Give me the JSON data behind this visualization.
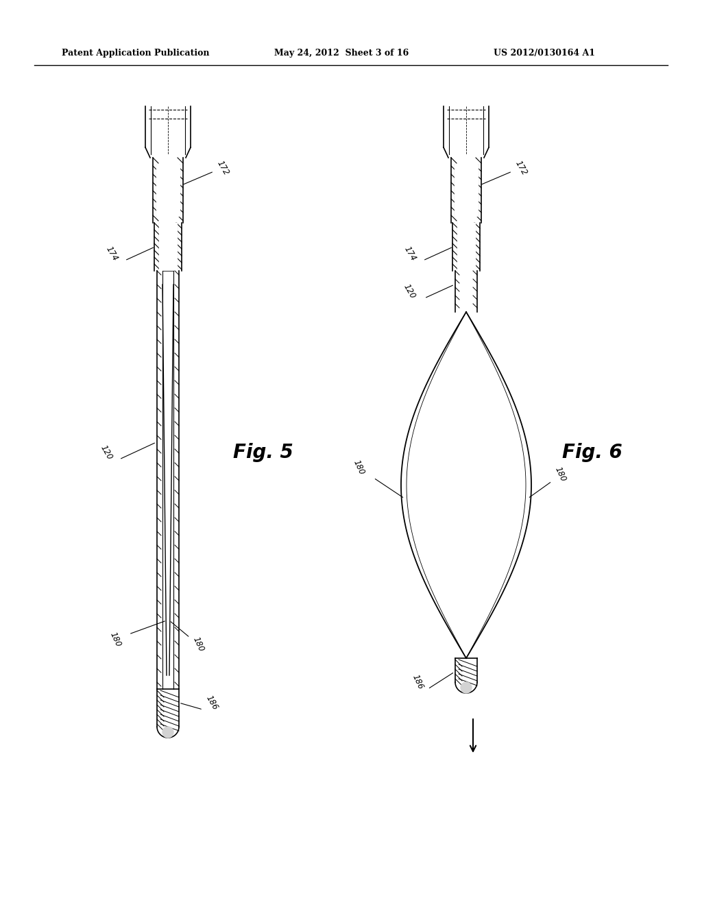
{
  "background_color": "#ffffff",
  "header_left": "Patent Application Publication",
  "header_mid": "May 24, 2012  Sheet 3 of 16",
  "header_right": "US 2012/0130164 A1",
  "fig5_label": "Fig. 5",
  "fig6_label": "Fig. 6",
  "label_172_fig5": "172",
  "label_174_fig5": "174",
  "label_120_fig5": "120",
  "label_180a_fig5": "180",
  "label_180b_fig5": "180",
  "label_186_fig5": "186",
  "label_172_fig6": "172",
  "label_174_fig6": "174",
  "label_120_fig6": "120",
  "label_180a_fig6": "180",
  "label_180b_fig6": "180",
  "label_186_fig6": "186",
  "line_color": "#000000",
  "hatch_color": "#000000",
  "text_color": "#000000"
}
